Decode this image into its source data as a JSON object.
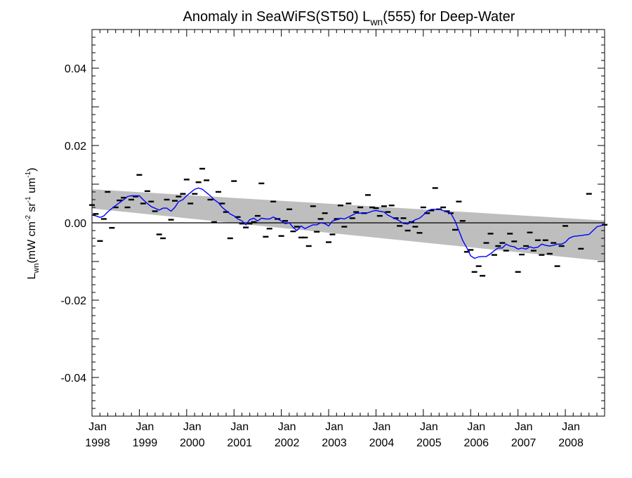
{
  "chart_data": {
    "type": "scatter",
    "title": {
      "main": "Anomaly in SeaWiFS(ST50) L",
      "sub": "wn",
      "tail": "(555) for Deep-Water"
    },
    "ylabel": {
      "symbol": "L",
      "symbol_sub": "wn",
      "units_open": "(mW cm",
      "exp1": "-2",
      "mid1": " sr",
      "exp2": "-1",
      "mid2": " um",
      "exp3": "-1",
      "units_close": ")"
    },
    "xlim": [
      1998.0,
      2008.83
    ],
    "ylim": [
      -0.05,
      0.05
    ],
    "y_ticks": [
      -0.04,
      -0.02,
      0.0,
      0.02,
      0.04
    ],
    "y_tick_labels": [
      "-0.04",
      "-0.02",
      "0.00",
      "0.02",
      "0.04"
    ],
    "x_ticks": [
      1998,
      1999,
      2000,
      2001,
      2002,
      2003,
      2004,
      2005,
      2006,
      2007,
      2008
    ],
    "x_tick_labels": [
      {
        "month": "Jan",
        "year": "1998"
      },
      {
        "month": "Jan",
        "year": "1999"
      },
      {
        "month": "Jan",
        "year": "2000"
      },
      {
        "month": "Jan",
        "year": "2001"
      },
      {
        "month": "Jan",
        "year": "2002"
      },
      {
        "month": "Jan",
        "year": "2003"
      },
      {
        "month": "Jan",
        "year": "2004"
      },
      {
        "month": "Jan",
        "year": "2005"
      },
      {
        "month": "Jan",
        "year": "2006"
      },
      {
        "month": "Jan",
        "year": "2007"
      },
      {
        "month": "Jan",
        "year": "2008"
      }
    ],
    "zero_line": 0.0,
    "trend_band": {
      "color": "#bebebe",
      "upper": [
        [
          1998.0,
          0.0087
        ],
        [
          2008.83,
          0.0006
        ]
      ],
      "lower": [
        [
          1998.0,
          0.0037
        ],
        [
          2008.83,
          -0.0099
        ]
      ]
    },
    "monthly_anomalies": {
      "color": "#000000",
      "points": [
        [
          1998.0,
          0.0046
        ],
        [
          1998.08,
          0.0023
        ],
        [
          1998.17,
          -0.0047
        ],
        [
          1998.25,
          0.001
        ],
        [
          1998.33,
          0.008
        ],
        [
          1998.42,
          -0.0013
        ],
        [
          1998.5,
          0.004
        ],
        [
          1998.58,
          0.0058
        ],
        [
          1998.67,
          0.0065
        ],
        [
          1998.75,
          0.004
        ],
        [
          1998.83,
          0.006
        ],
        [
          1998.92,
          0.0068
        ],
        [
          1999.0,
          0.0124
        ],
        [
          1999.08,
          0.005
        ],
        [
          1999.17,
          0.0082
        ],
        [
          1999.25,
          0.0055
        ],
        [
          1999.33,
          0.003
        ],
        [
          1999.42,
          -0.003
        ],
        [
          1999.5,
          -0.004
        ],
        [
          1999.58,
          0.006
        ],
        [
          1999.67,
          0.0008
        ],
        [
          1999.75,
          0.0057
        ],
        [
          1999.83,
          0.0068
        ],
        [
          1999.92,
          0.0075
        ],
        [
          2000.0,
          0.0112
        ],
        [
          2000.08,
          0.005
        ],
        [
          2000.17,
          0.0075
        ],
        [
          2000.25,
          0.0105
        ],
        [
          2000.33,
          0.014
        ],
        [
          2000.42,
          0.011
        ],
        [
          2000.5,
          0.006
        ],
        [
          2000.58,
          0.0002
        ],
        [
          2000.67,
          0.008
        ],
        [
          2000.75,
          0.005
        ],
        [
          2000.83,
          0.0028
        ],
        [
          2000.92,
          -0.004
        ],
        [
          2001.0,
          0.0108
        ],
        [
          2001.08,
          0.0015
        ],
        [
          2001.17,
          -0.0002
        ],
        [
          2001.25,
          -0.0012
        ],
        [
          2001.33,
          -0.0002
        ],
        [
          2001.42,
          0.0002
        ],
        [
          2001.5,
          0.0018
        ],
        [
          2001.58,
          0.0102
        ],
        [
          2001.67,
          -0.0036
        ],
        [
          2001.75,
          -0.0015
        ],
        [
          2001.83,
          0.0055
        ],
        [
          2001.92,
          0.001
        ],
        [
          2002.0,
          -0.0034
        ],
        [
          2002.08,
          0.0005
        ],
        [
          2002.17,
          0.0035
        ],
        [
          2002.25,
          -0.0022
        ],
        [
          2002.33,
          -0.001
        ],
        [
          2002.42,
          -0.0038
        ],
        [
          2002.5,
          -0.0038
        ],
        [
          2002.58,
          -0.006
        ],
        [
          2002.67,
          0.0043
        ],
        [
          2002.75,
          -0.0023
        ],
        [
          2002.83,
          0.001
        ],
        [
          2002.92,
          0.0025
        ],
        [
          2003.0,
          -0.005
        ],
        [
          2003.08,
          -0.003
        ],
        [
          2003.17,
          0.001
        ],
        [
          2003.25,
          0.0045
        ],
        [
          2003.33,
          -0.001
        ],
        [
          2003.42,
          0.005
        ],
        [
          2003.5,
          0.0012
        ],
        [
          2003.58,
          0.0028
        ],
        [
          2003.67,
          0.004
        ],
        [
          2003.75,
          0.0025
        ],
        [
          2003.83,
          0.0072
        ],
        [
          2003.92,
          0.004
        ],
        [
          2004.0,
          0.0038
        ],
        [
          2004.08,
          0.0018
        ],
        [
          2004.17,
          0.0043
        ],
        [
          2004.25,
          0.0028
        ],
        [
          2004.33,
          0.0045
        ],
        [
          2004.42,
          0.0012
        ],
        [
          2004.5,
          -0.0008
        ],
        [
          2004.58,
          0.0012
        ],
        [
          2004.67,
          -0.002
        ],
        [
          2004.75,
          0.0002
        ],
        [
          2004.83,
          -0.001
        ],
        [
          2004.92,
          -0.0026
        ],
        [
          2005.0,
          0.004
        ],
        [
          2005.08,
          0.0025
        ],
        [
          2005.17,
          0.0032
        ],
        [
          2005.25,
          0.009
        ],
        [
          2005.33,
          0.0035
        ],
        [
          2005.42,
          0.004
        ],
        [
          2005.5,
          0.003
        ],
        [
          2005.58,
          0.0025
        ],
        [
          2005.67,
          -0.0018
        ],
        [
          2005.75,
          0.0055
        ],
        [
          2005.83,
          0.0005
        ],
        [
          2005.92,
          -0.0075
        ],
        [
          2006.0,
          -0.007
        ],
        [
          2006.08,
          -0.0127
        ],
        [
          2006.17,
          -0.0112
        ],
        [
          2006.25,
          -0.0137
        ],
        [
          2006.33,
          -0.0052
        ],
        [
          2006.42,
          -0.0028
        ],
        [
          2006.5,
          -0.0083
        ],
        [
          2006.58,
          -0.006
        ],
        [
          2006.67,
          -0.0052
        ],
        [
          2006.75,
          -0.0072
        ],
        [
          2006.83,
          -0.0028
        ],
        [
          2006.92,
          -0.0048
        ],
        [
          2007.0,
          -0.0127
        ],
        [
          2007.08,
          -0.0082
        ],
        [
          2007.17,
          -0.006
        ],
        [
          2007.25,
          -0.0025
        ],
        [
          2007.33,
          -0.0072
        ],
        [
          2007.42,
          -0.0045
        ],
        [
          2007.5,
          -0.0083
        ],
        [
          2007.58,
          -0.0045
        ],
        [
          2007.67,
          -0.008
        ],
        [
          2007.75,
          -0.0052
        ],
        [
          2007.83,
          -0.0112
        ],
        [
          2007.92,
          -0.006
        ],
        [
          2008.0,
          -0.0008
        ],
        [
          2008.33,
          -0.0067
        ],
        [
          2008.5,
          0.0075
        ],
        [
          2008.83,
          -0.0005
        ]
      ]
    },
    "smoothed_series": {
      "color": "#0000ff",
      "points": [
        [
          1998.0,
          0.002
        ],
        [
          1998.08,
          0.0018
        ],
        [
          1998.17,
          0.0014
        ],
        [
          1998.25,
          0.0018
        ],
        [
          1998.33,
          0.0028
        ],
        [
          1998.42,
          0.0037
        ],
        [
          1998.5,
          0.0045
        ],
        [
          1998.58,
          0.0052
        ],
        [
          1998.67,
          0.006
        ],
        [
          1998.75,
          0.0068
        ],
        [
          1998.83,
          0.007
        ],
        [
          1998.92,
          0.007
        ],
        [
          1999.0,
          0.007
        ],
        [
          1999.08,
          0.006
        ],
        [
          1999.17,
          0.005
        ],
        [
          1999.25,
          0.0042
        ],
        [
          1999.33,
          0.0038
        ],
        [
          1999.42,
          0.0033
        ],
        [
          1999.5,
          0.0038
        ],
        [
          1999.58,
          0.0038
        ],
        [
          1999.67,
          0.003
        ],
        [
          1999.75,
          0.004
        ],
        [
          1999.83,
          0.0055
        ],
        [
          1999.92,
          0.006
        ],
        [
          2000.0,
          0.007
        ],
        [
          2000.08,
          0.0078
        ],
        [
          2000.17,
          0.0087
        ],
        [
          2000.25,
          0.009
        ],
        [
          2000.33,
          0.0087
        ],
        [
          2000.42,
          0.0078
        ],
        [
          2000.5,
          0.007
        ],
        [
          2000.58,
          0.006
        ],
        [
          2000.67,
          0.0052
        ],
        [
          2000.75,
          0.004
        ],
        [
          2000.83,
          0.0032
        ],
        [
          2000.92,
          0.0023
        ],
        [
          2001.0,
          0.0018
        ],
        [
          2001.08,
          0.001
        ],
        [
          2001.17,
          0.0005
        ],
        [
          2001.25,
          -0.0005
        ],
        [
          2001.33,
          0.0008
        ],
        [
          2001.42,
          0.0012
        ],
        [
          2001.5,
          0.0005
        ],
        [
          2001.58,
          0.0012
        ],
        [
          2001.67,
          0.001
        ],
        [
          2001.75,
          0.001
        ],
        [
          2001.83,
          0.0015
        ],
        [
          2001.92,
          0.001
        ],
        [
          2002.0,
          0.0005
        ],
        [
          2002.08,
          -0.0002
        ],
        [
          2002.17,
          0.0
        ],
        [
          2002.25,
          -0.0012
        ],
        [
          2002.33,
          -0.002
        ],
        [
          2002.42,
          -0.0008
        ],
        [
          2002.5,
          -0.0015
        ],
        [
          2002.58,
          -0.001
        ],
        [
          2002.67,
          -0.0005
        ],
        [
          2002.75,
          -0.0005
        ],
        [
          2002.83,
          0.0
        ],
        [
          2002.92,
          -0.0002
        ],
        [
          2003.0,
          -0.0008
        ],
        [
          2003.08,
          0.0005
        ],
        [
          2003.17,
          0.0008
        ],
        [
          2003.25,
          0.0012
        ],
        [
          2003.33,
          0.001
        ],
        [
          2003.42,
          0.0015
        ],
        [
          2003.5,
          0.002
        ],
        [
          2003.58,
          0.0025
        ],
        [
          2003.67,
          0.0025
        ],
        [
          2003.75,
          0.0025
        ],
        [
          2003.83,
          0.0026
        ],
        [
          2003.92,
          0.003
        ],
        [
          2004.0,
          0.0032
        ],
        [
          2004.08,
          0.003
        ],
        [
          2004.17,
          0.0028
        ],
        [
          2004.25,
          0.002
        ],
        [
          2004.33,
          0.0015
        ],
        [
          2004.42,
          0.001
        ],
        [
          2004.5,
          0.0005
        ],
        [
          2004.58,
          -0.0002
        ],
        [
          2004.67,
          -0.0003
        ],
        [
          2004.75,
          0.0002
        ],
        [
          2004.83,
          0.0008
        ],
        [
          2004.92,
          0.0012
        ],
        [
          2005.0,
          0.002
        ],
        [
          2005.08,
          0.003
        ],
        [
          2005.17,
          0.0035
        ],
        [
          2005.25,
          0.0035
        ],
        [
          2005.33,
          0.0035
        ],
        [
          2005.42,
          0.0032
        ],
        [
          2005.5,
          0.0028
        ],
        [
          2005.58,
          0.0025
        ],
        [
          2005.67,
          0.0005
        ],
        [
          2005.75,
          -0.002
        ],
        [
          2005.83,
          -0.0045
        ],
        [
          2005.92,
          -0.0065
        ],
        [
          2006.0,
          -0.0085
        ],
        [
          2006.08,
          -0.0092
        ],
        [
          2006.17,
          -0.0088
        ],
        [
          2006.25,
          -0.0087
        ],
        [
          2006.33,
          -0.0087
        ],
        [
          2006.42,
          -0.008
        ],
        [
          2006.5,
          -0.0072
        ],
        [
          2006.58,
          -0.0065
        ],
        [
          2006.67,
          -0.0065
        ],
        [
          2006.75,
          -0.0055
        ],
        [
          2006.83,
          -0.006
        ],
        [
          2006.92,
          -0.0062
        ],
        [
          2007.0,
          -0.0068
        ],
        [
          2007.08,
          -0.0065
        ],
        [
          2007.17,
          -0.0068
        ],
        [
          2007.25,
          -0.0062
        ],
        [
          2007.33,
          -0.0065
        ],
        [
          2007.42,
          -0.0063
        ],
        [
          2007.5,
          -0.0055
        ],
        [
          2007.58,
          -0.0058
        ],
        [
          2007.67,
          -0.006
        ],
        [
          2007.75,
          -0.0058
        ],
        [
          2007.83,
          -0.0055
        ],
        [
          2007.92,
          -0.0055
        ],
        [
          2008.0,
          -0.005
        ],
        [
          2008.08,
          -0.004
        ],
        [
          2008.17,
          -0.0035
        ],
        [
          2008.33,
          -0.0033
        ],
        [
          2008.5,
          -0.003
        ],
        [
          2008.67,
          -0.001
        ],
        [
          2008.83,
          -0.0005
        ]
      ]
    }
  }
}
